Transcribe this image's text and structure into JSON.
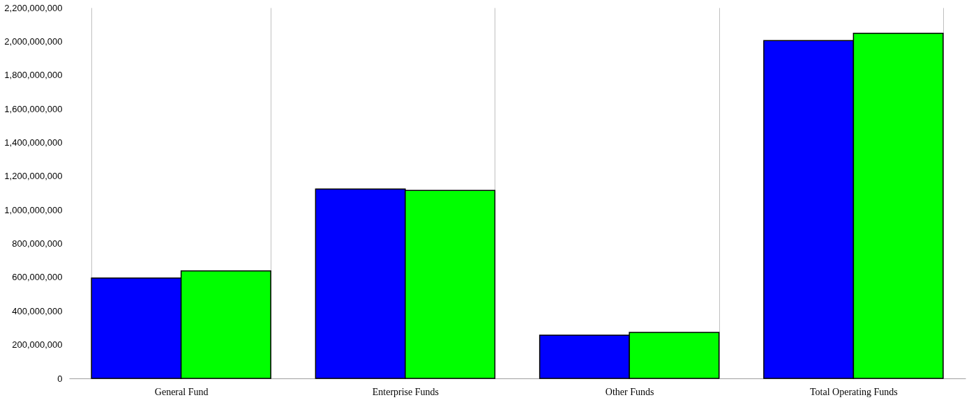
{
  "chart_data": {
    "type": "bar",
    "categories": [
      "General Fund",
      "Enterprise Funds",
      "Other Funds",
      "Total Operating Funds"
    ],
    "series": [
      {
        "color": "#0000ff",
        "values": [
          595000000,
          1124000000,
          256000000,
          2005000000
        ]
      },
      {
        "color": "#00ff00",
        "values": [
          638000000,
          1115000000,
          273000000,
          2048000000
        ]
      }
    ],
    "ylim": [
      0,
      2200000000
    ],
    "yticks": [
      0,
      {
        "value": 200000000,
        "label": "200,000,000"
      },
      {
        "value": 400000000,
        "label": "400,000,000"
      },
      {
        "value": 600000000,
        "label": "600,000,000"
      },
      {
        "value": 800000000,
        "label": "800,000,000"
      },
      {
        "value": 1000000000,
        "label": "1,000,000,000"
      },
      {
        "value": 1200000000,
        "label": "1,200,000,000"
      },
      {
        "value": 1400000000,
        "label": "1,400,000,000"
      },
      {
        "value": 1600000000,
        "label": "1,600,000,000"
      },
      {
        "value": 1800000000,
        "label": "1,800,000,000"
      },
      {
        "value": 2000000000,
        "label": "2,000,000,000"
      },
      {
        "value": 2200000000,
        "label": "2,200,000,000"
      }
    ],
    "grid": "x",
    "legend": false
  }
}
